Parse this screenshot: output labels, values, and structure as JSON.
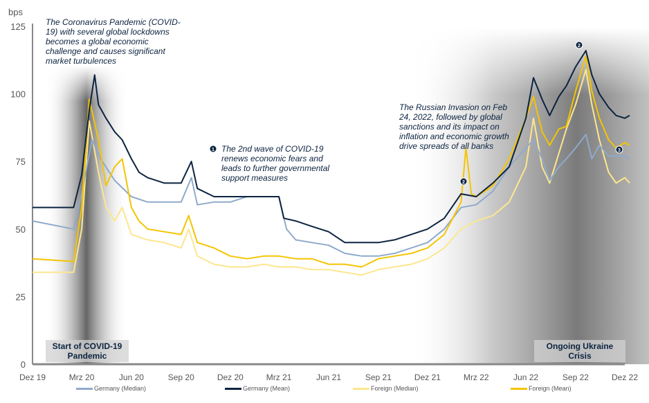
{
  "chart_data": {
    "type": "line",
    "ylabel": "bps",
    "ylim": [
      0,
      125
    ],
    "yticks": [
      0,
      25,
      50,
      75,
      100,
      125
    ],
    "xlim": [
      "2019-12-01",
      "2022-12-01"
    ],
    "xticks": [
      {
        "date": "2019-12-01",
        "label": "Dez 19"
      },
      {
        "date": "2020-03-01",
        "label": "Mrz 20"
      },
      {
        "date": "2020-06-01",
        "label": "Jun 20"
      },
      {
        "date": "2020-09-01",
        "label": "Sep 20"
      },
      {
        "date": "2020-12-01",
        "label": "Dez 20"
      },
      {
        "date": "2021-03-01",
        "label": "Mrz 21"
      },
      {
        "date": "2021-06-01",
        "label": "Jun 21"
      },
      {
        "date": "2021-09-01",
        "label": "Sep 21"
      },
      {
        "date": "2021-12-01",
        "label": "Dez 21"
      },
      {
        "date": "2022-03-01",
        "label": "Mrz 22"
      },
      {
        "date": "2022-06-01",
        "label": "Jun 22"
      },
      {
        "date": "2022-09-01",
        "label": "Sep 22"
      },
      {
        "date": "2022-12-01",
        "label": "Dez 22"
      }
    ],
    "grid": false,
    "legend_position": "bottom",
    "series": [
      {
        "name": "Germany (Median)",
        "color": "#8faacb",
        "points": [
          [
            "2019-12-01",
            53
          ],
          [
            "2020-02-15",
            50
          ],
          [
            "2020-03-01",
            63
          ],
          [
            "2020-03-20",
            83
          ],
          [
            "2020-04-05",
            76
          ],
          [
            "2020-05-01",
            68
          ],
          [
            "2020-06-01",
            62
          ],
          [
            "2020-07-01",
            60
          ],
          [
            "2020-08-01",
            60
          ],
          [
            "2020-09-01",
            60
          ],
          [
            "2020-09-20",
            69
          ],
          [
            "2020-10-01",
            59
          ],
          [
            "2020-11-01",
            60
          ],
          [
            "2020-12-01",
            60
          ],
          [
            "2021-01-01",
            62
          ],
          [
            "2021-02-01",
            62
          ],
          [
            "2021-03-01",
            62
          ],
          [
            "2021-03-15",
            50
          ],
          [
            "2021-04-01",
            46
          ],
          [
            "2021-05-01",
            45
          ],
          [
            "2021-06-01",
            44
          ],
          [
            "2021-07-01",
            41
          ],
          [
            "2021-08-01",
            40
          ],
          [
            "2021-09-01",
            40
          ],
          [
            "2021-10-01",
            41
          ],
          [
            "2021-11-01",
            43
          ],
          [
            "2021-12-01",
            45
          ],
          [
            "2022-01-01",
            50
          ],
          [
            "2022-02-01",
            58
          ],
          [
            "2022-03-01",
            59
          ],
          [
            "2022-04-01",
            64
          ],
          [
            "2022-05-01",
            73
          ],
          [
            "2022-06-01",
            80
          ],
          [
            "2022-06-15",
            83
          ],
          [
            "2022-07-01",
            76
          ],
          [
            "2022-07-15",
            68
          ],
          [
            "2022-08-01",
            73
          ],
          [
            "2022-08-15",
            76
          ],
          [
            "2022-09-01",
            80
          ],
          [
            "2022-09-20",
            85
          ],
          [
            "2022-10-01",
            76
          ],
          [
            "2022-10-15",
            81
          ],
          [
            "2022-11-01",
            77
          ],
          [
            "2022-12-01",
            77
          ],
          [
            "2022-12-10",
            76
          ]
        ]
      },
      {
        "name": "Germany (Mean)",
        "color": "#0c2340",
        "points": [
          [
            "2019-12-01",
            58
          ],
          [
            "2020-02-15",
            58
          ],
          [
            "2020-03-01",
            70
          ],
          [
            "2020-03-15",
            94
          ],
          [
            "2020-03-25",
            107
          ],
          [
            "2020-04-01",
            96
          ],
          [
            "2020-04-15",
            91
          ],
          [
            "2020-05-01",
            86
          ],
          [
            "2020-05-15",
            83
          ],
          [
            "2020-06-01",
            76
          ],
          [
            "2020-06-15",
            71
          ],
          [
            "2020-07-01",
            69
          ],
          [
            "2020-08-01",
            67
          ],
          [
            "2020-09-01",
            67
          ],
          [
            "2020-09-20",
            75
          ],
          [
            "2020-10-01",
            65
          ],
          [
            "2020-11-01",
            62
          ],
          [
            "2020-12-01",
            62
          ],
          [
            "2021-01-01",
            62
          ],
          [
            "2021-02-01",
            62
          ],
          [
            "2021-03-01",
            62
          ],
          [
            "2021-03-10",
            54
          ],
          [
            "2021-04-01",
            53
          ],
          [
            "2021-05-01",
            51
          ],
          [
            "2021-06-01",
            49
          ],
          [
            "2021-07-01",
            45
          ],
          [
            "2021-08-01",
            45
          ],
          [
            "2021-09-01",
            45
          ],
          [
            "2021-10-01",
            46
          ],
          [
            "2021-11-01",
            48
          ],
          [
            "2021-12-01",
            50
          ],
          [
            "2022-01-01",
            54
          ],
          [
            "2022-02-01",
            63
          ],
          [
            "2022-03-01",
            62
          ],
          [
            "2022-04-01",
            67
          ],
          [
            "2022-05-01",
            73
          ],
          [
            "2022-06-01",
            91
          ],
          [
            "2022-06-15",
            106
          ],
          [
            "2022-07-01",
            98
          ],
          [
            "2022-07-15",
            92
          ],
          [
            "2022-08-01",
            99
          ],
          [
            "2022-08-15",
            103
          ],
          [
            "2022-09-01",
            110
          ],
          [
            "2022-09-20",
            116
          ],
          [
            "2022-10-01",
            107
          ],
          [
            "2022-10-15",
            100
          ],
          [
            "2022-11-01",
            95
          ],
          [
            "2022-11-15",
            92
          ],
          [
            "2022-12-01",
            91
          ],
          [
            "2022-12-10",
            92
          ]
        ]
      },
      {
        "name": "Foreign (Median)",
        "color": "#fde68f",
        "points": [
          [
            "2019-12-01",
            34
          ],
          [
            "2020-02-15",
            34
          ],
          [
            "2020-03-01",
            50
          ],
          [
            "2020-03-15",
            90
          ],
          [
            "2020-04-01",
            71
          ],
          [
            "2020-04-15",
            58
          ],
          [
            "2020-05-01",
            53
          ],
          [
            "2020-05-15",
            58
          ],
          [
            "2020-06-01",
            48
          ],
          [
            "2020-07-01",
            46
          ],
          [
            "2020-08-01",
            45
          ],
          [
            "2020-09-01",
            43
          ],
          [
            "2020-09-15",
            50
          ],
          [
            "2020-10-01",
            40
          ],
          [
            "2020-11-01",
            37
          ],
          [
            "2020-12-01",
            36
          ],
          [
            "2021-01-01",
            36
          ],
          [
            "2021-02-01",
            37
          ],
          [
            "2021-03-01",
            36
          ],
          [
            "2021-04-01",
            36
          ],
          [
            "2021-05-01",
            35
          ],
          [
            "2021-06-01",
            35
          ],
          [
            "2021-07-01",
            34
          ],
          [
            "2021-08-01",
            33
          ],
          [
            "2021-09-01",
            35
          ],
          [
            "2021-10-01",
            36
          ],
          [
            "2021-11-01",
            37
          ],
          [
            "2021-12-01",
            39
          ],
          [
            "2022-01-01",
            43
          ],
          [
            "2022-02-01",
            50
          ],
          [
            "2022-03-01",
            53
          ],
          [
            "2022-04-01",
            55
          ],
          [
            "2022-05-01",
            60
          ],
          [
            "2022-06-01",
            73
          ],
          [
            "2022-06-15",
            91
          ],
          [
            "2022-07-01",
            73
          ],
          [
            "2022-07-15",
            67
          ],
          [
            "2022-08-01",
            78
          ],
          [
            "2022-08-15",
            87
          ],
          [
            "2022-09-01",
            96
          ],
          [
            "2022-09-20",
            109
          ],
          [
            "2022-10-01",
            96
          ],
          [
            "2022-10-15",
            83
          ],
          [
            "2022-11-01",
            71
          ],
          [
            "2022-11-15",
            67
          ],
          [
            "2022-12-01",
            69
          ],
          [
            "2022-12-10",
            67
          ]
        ]
      },
      {
        "name": "Foreign (Mean)",
        "color": "#f5c400",
        "points": [
          [
            "2019-12-01",
            39
          ],
          [
            "2020-02-15",
            38
          ],
          [
            "2020-03-01",
            58
          ],
          [
            "2020-03-15",
            98
          ],
          [
            "2020-04-01",
            83
          ],
          [
            "2020-04-15",
            66
          ],
          [
            "2020-05-01",
            73
          ],
          [
            "2020-05-15",
            76
          ],
          [
            "2020-06-01",
            58
          ],
          [
            "2020-06-15",
            53
          ],
          [
            "2020-07-01",
            50
          ],
          [
            "2020-08-01",
            49
          ],
          [
            "2020-09-01",
            48
          ],
          [
            "2020-09-15",
            55
          ],
          [
            "2020-10-01",
            45
          ],
          [
            "2020-11-01",
            43
          ],
          [
            "2020-12-01",
            40
          ],
          [
            "2021-01-01",
            39
          ],
          [
            "2021-02-01",
            40
          ],
          [
            "2021-03-01",
            40
          ],
          [
            "2021-04-01",
            39
          ],
          [
            "2021-05-01",
            39
          ],
          [
            "2021-06-01",
            37
          ],
          [
            "2021-07-01",
            37
          ],
          [
            "2021-08-01",
            36
          ],
          [
            "2021-09-01",
            39
          ],
          [
            "2021-10-01",
            40
          ],
          [
            "2021-11-01",
            41
          ],
          [
            "2021-12-01",
            43
          ],
          [
            "2022-01-01",
            48
          ],
          [
            "2022-02-01",
            60
          ],
          [
            "2022-02-10",
            80
          ],
          [
            "2022-02-20",
            63
          ],
          [
            "2022-03-01",
            62
          ],
          [
            "2022-04-01",
            66
          ],
          [
            "2022-05-01",
            76
          ],
          [
            "2022-06-01",
            91
          ],
          [
            "2022-06-15",
            99
          ],
          [
            "2022-07-01",
            86
          ],
          [
            "2022-07-15",
            81
          ],
          [
            "2022-08-01",
            87
          ],
          [
            "2022-08-15",
            88
          ],
          [
            "2022-09-01",
            101
          ],
          [
            "2022-09-20",
            114
          ],
          [
            "2022-10-01",
            101
          ],
          [
            "2022-10-15",
            91
          ],
          [
            "2022-11-01",
            83
          ],
          [
            "2022-11-15",
            80
          ],
          [
            "2022-12-01",
            82
          ],
          [
            "2022-12-10",
            81
          ]
        ]
      }
    ],
    "annotations": {
      "covid_text": "The Coronavirus Pandemic (COVID-19) with several global lockdowns becomes a global economic challenge and causes significant market turbulences",
      "second_wave_text": "The 2nd wave of COVID-19 renews economic fears and leads to further governmental support measures",
      "russia_text": "The Russian Invasion on Feb 24, 2022, followed by global sanctions and its impact on inflation and economic growth drive spreads of all banks",
      "covid_box": "Start of COVID-19 Pandemic",
      "ukraine_box": "Ongoing Ukraine Crisis",
      "markers": [
        "1",
        "2",
        "2",
        "3"
      ]
    }
  }
}
